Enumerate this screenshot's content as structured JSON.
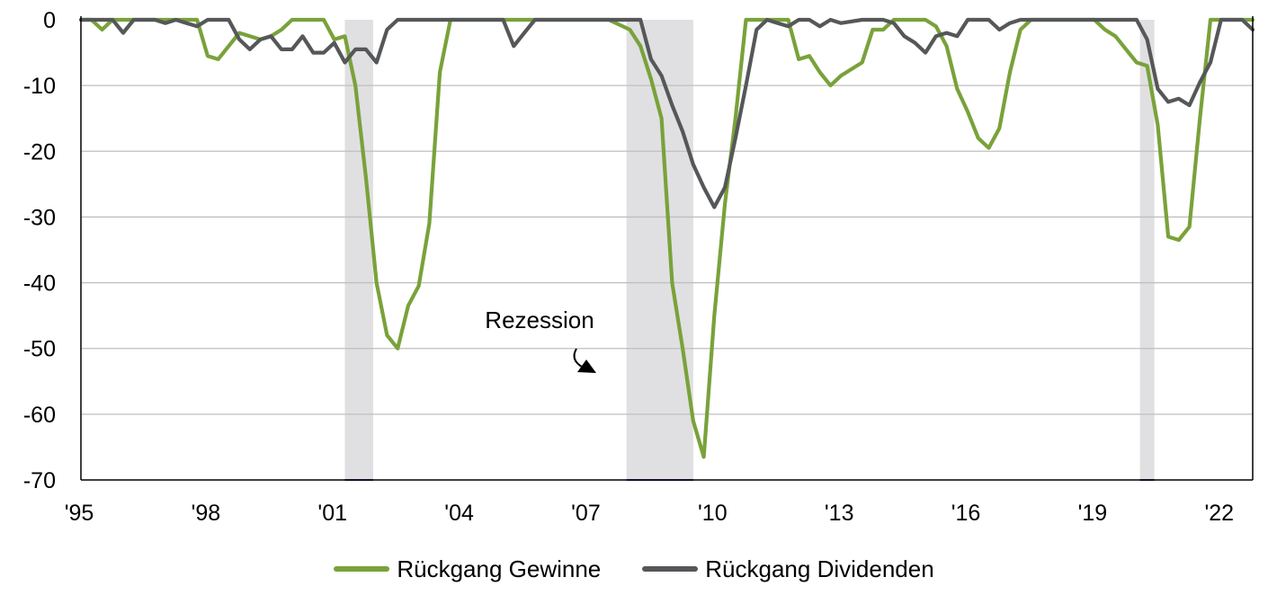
{
  "chart_data": {
    "type": "line",
    "title": "",
    "xlabel": "",
    "ylabel": "",
    "xlim": [
      1995.0,
      2022.75
    ],
    "ylim": [
      -70,
      0
    ],
    "y_ticks": [
      0,
      -10,
      -20,
      -30,
      -40,
      -50,
      -60,
      -70
    ],
    "x_ticks": [
      {
        "label": "'95",
        "value": 1995
      },
      {
        "label": "'98",
        "value": 1998
      },
      {
        "label": "'01",
        "value": 2001
      },
      {
        "label": "'04",
        "value": 2004
      },
      {
        "label": "'07",
        "value": 2007
      },
      {
        "label": "'10",
        "value": 2010
      },
      {
        "label": "'13",
        "value": 2013
      },
      {
        "label": "'16",
        "value": 2016
      },
      {
        "label": "'19",
        "value": 2019
      },
      {
        "label": "'22",
        "value": 2022
      }
    ],
    "grid": "horizontal",
    "legend_position": "bottom-center",
    "recessions": [
      [
        2001.25,
        2001.92
      ],
      [
        2007.92,
        2009.5
      ],
      [
        2020.08,
        2020.42
      ]
    ],
    "annotation": {
      "text": "Rezession",
      "x": 2008.4,
      "y": -48
    },
    "series": [
      {
        "name": "Rückgang Gewinne",
        "color": "#79A23A",
        "points": [
          [
            1995.0,
            0
          ],
          [
            1995.25,
            0
          ],
          [
            1995.5,
            -1.5
          ],
          [
            1995.75,
            0
          ],
          [
            1996.0,
            0
          ],
          [
            1996.25,
            0
          ],
          [
            1996.5,
            0
          ],
          [
            1996.75,
            0
          ],
          [
            1997.0,
            0
          ],
          [
            1997.25,
            0
          ],
          [
            1997.5,
            0
          ],
          [
            1997.75,
            0
          ],
          [
            1998.0,
            -5.5
          ],
          [
            1998.25,
            -6
          ],
          [
            1998.5,
            -4
          ],
          [
            1998.75,
            -2
          ],
          [
            1999.0,
            -2.5
          ],
          [
            1999.25,
            -3
          ],
          [
            1999.5,
            -2.5
          ],
          [
            1999.75,
            -1.5
          ],
          [
            2000.0,
            0
          ],
          [
            2000.25,
            0
          ],
          [
            2000.5,
            0
          ],
          [
            2000.75,
            0
          ],
          [
            2001.0,
            -3
          ],
          [
            2001.25,
            -2.5
          ],
          [
            2001.5,
            -10
          ],
          [
            2001.75,
            -24
          ],
          [
            2002.0,
            -40
          ],
          [
            2002.25,
            -48
          ],
          [
            2002.5,
            -50
          ],
          [
            2002.75,
            -43.5
          ],
          [
            2003.0,
            -40.5
          ],
          [
            2003.25,
            -31
          ],
          [
            2003.5,
            -8
          ],
          [
            2003.75,
            0
          ],
          [
            2004.0,
            0
          ],
          [
            2004.5,
            0
          ],
          [
            2005.0,
            0
          ],
          [
            2005.5,
            0
          ],
          [
            2006.0,
            0
          ],
          [
            2006.5,
            0
          ],
          [
            2007.0,
            0
          ],
          [
            2007.5,
            0
          ],
          [
            2008.0,
            -1.5
          ],
          [
            2008.25,
            -4
          ],
          [
            2008.5,
            -9
          ],
          [
            2008.75,
            -15
          ],
          [
            2009.0,
            -40
          ],
          [
            2009.25,
            -50
          ],
          [
            2009.5,
            -61
          ],
          [
            2009.75,
            -66.5
          ],
          [
            2010.0,
            -45
          ],
          [
            2010.25,
            -28
          ],
          [
            2010.5,
            -15
          ],
          [
            2010.75,
            0
          ],
          [
            2011.0,
            0
          ],
          [
            2011.25,
            0
          ],
          [
            2011.5,
            0
          ],
          [
            2011.75,
            0
          ],
          [
            2012.0,
            -6
          ],
          [
            2012.25,
            -5.5
          ],
          [
            2012.5,
            -8
          ],
          [
            2012.75,
            -10
          ],
          [
            2013.0,
            -8.5
          ],
          [
            2013.25,
            -7.5
          ],
          [
            2013.5,
            -6.5
          ],
          [
            2013.75,
            -1.5
          ],
          [
            2014.0,
            -1.5
          ],
          [
            2014.25,
            0
          ],
          [
            2014.5,
            0
          ],
          [
            2014.75,
            0
          ],
          [
            2015.0,
            0
          ],
          [
            2015.25,
            -1
          ],
          [
            2015.5,
            -4
          ],
          [
            2015.75,
            -10.5
          ],
          [
            2016.0,
            -14
          ],
          [
            2016.25,
            -18
          ],
          [
            2016.5,
            -19.5
          ],
          [
            2016.75,
            -16.5
          ],
          [
            2017.0,
            -8
          ],
          [
            2017.25,
            -1.5
          ],
          [
            2017.5,
            0
          ],
          [
            2017.75,
            0
          ],
          [
            2018.0,
            0
          ],
          [
            2018.5,
            0
          ],
          [
            2019.0,
            0
          ],
          [
            2019.25,
            -1.5
          ],
          [
            2019.5,
            -2.5
          ],
          [
            2019.75,
            -4.5
          ],
          [
            2020.0,
            -6.5
          ],
          [
            2020.25,
            -7
          ],
          [
            2020.5,
            -16
          ],
          [
            2020.75,
            -33
          ],
          [
            2021.0,
            -33.5
          ],
          [
            2021.25,
            -31.5
          ],
          [
            2021.5,
            -15
          ],
          [
            2021.75,
            0
          ],
          [
            2022.0,
            0
          ],
          [
            2022.25,
            0
          ],
          [
            2022.5,
            0
          ],
          [
            2022.75,
            0
          ]
        ]
      },
      {
        "name": "Rückgang Dividenden",
        "color": "#555759",
        "points": [
          [
            1995.0,
            0
          ],
          [
            1995.25,
            0
          ],
          [
            1995.5,
            0
          ],
          [
            1995.75,
            0
          ],
          [
            1996.0,
            -2
          ],
          [
            1996.25,
            0
          ],
          [
            1996.5,
            0
          ],
          [
            1996.75,
            0
          ],
          [
            1997.0,
            -0.5
          ],
          [
            1997.25,
            0
          ],
          [
            1997.5,
            -0.5
          ],
          [
            1997.75,
            -1
          ],
          [
            1998.0,
            0
          ],
          [
            1998.25,
            0
          ],
          [
            1998.5,
            0
          ],
          [
            1998.75,
            -3
          ],
          [
            1999.0,
            -4.5
          ],
          [
            1999.25,
            -3
          ],
          [
            1999.5,
            -2.5
          ],
          [
            1999.75,
            -4.5
          ],
          [
            2000.0,
            -4.5
          ],
          [
            2000.25,
            -2.5
          ],
          [
            2000.5,
            -5
          ],
          [
            2000.75,
            -5
          ],
          [
            2001.0,
            -3.5
          ],
          [
            2001.25,
            -6.5
          ],
          [
            2001.5,
            -4.5
          ],
          [
            2001.75,
            -4.5
          ],
          [
            2002.0,
            -6.5
          ],
          [
            2002.25,
            -1.5
          ],
          [
            2002.5,
            0
          ],
          [
            2002.75,
            0
          ],
          [
            2003.0,
            0
          ],
          [
            2003.5,
            0
          ],
          [
            2004.0,
            0
          ],
          [
            2004.5,
            0
          ],
          [
            2005.0,
            0
          ],
          [
            2005.25,
            -4
          ],
          [
            2005.5,
            -2
          ],
          [
            2005.75,
            0
          ],
          [
            2006.0,
            0
          ],
          [
            2006.5,
            0
          ],
          [
            2007.0,
            0
          ],
          [
            2007.5,
            0
          ],
          [
            2007.75,
            0
          ],
          [
            2008.0,
            0
          ],
          [
            2008.25,
            0
          ],
          [
            2008.5,
            -6
          ],
          [
            2008.75,
            -8.5
          ],
          [
            2009.0,
            -13
          ],
          [
            2009.25,
            -17
          ],
          [
            2009.5,
            -22
          ],
          [
            2009.75,
            -25.5
          ],
          [
            2010.0,
            -28.5
          ],
          [
            2010.25,
            -25.5
          ],
          [
            2010.5,
            -18
          ],
          [
            2010.75,
            -10
          ],
          [
            2011.0,
            -1.5
          ],
          [
            2011.25,
            0
          ],
          [
            2011.5,
            -0.5
          ],
          [
            2011.75,
            -1
          ],
          [
            2012.0,
            0
          ],
          [
            2012.25,
            0
          ],
          [
            2012.5,
            -1
          ],
          [
            2012.75,
            0
          ],
          [
            2013.0,
            -0.5
          ],
          [
            2013.5,
            0
          ],
          [
            2014.0,
            0
          ],
          [
            2014.25,
            -0.5
          ],
          [
            2014.5,
            -2.5
          ],
          [
            2014.75,
            -3.5
          ],
          [
            2015.0,
            -5
          ],
          [
            2015.25,
            -2.5
          ],
          [
            2015.5,
            -2
          ],
          [
            2015.75,
            -2.5
          ],
          [
            2016.0,
            0
          ],
          [
            2016.25,
            0
          ],
          [
            2016.5,
            0
          ],
          [
            2016.75,
            -1.5
          ],
          [
            2017.0,
            -0.5
          ],
          [
            2017.25,
            0
          ],
          [
            2017.5,
            0
          ],
          [
            2018.0,
            0
          ],
          [
            2018.5,
            0
          ],
          [
            2019.0,
            0
          ],
          [
            2019.5,
            0
          ],
          [
            2020.0,
            0
          ],
          [
            2020.25,
            -3
          ],
          [
            2020.5,
            -10.5
          ],
          [
            2020.75,
            -12.5
          ],
          [
            2021.0,
            -12
          ],
          [
            2021.25,
            -13
          ],
          [
            2021.5,
            -9.5
          ],
          [
            2021.75,
            -6.5
          ],
          [
            2022.0,
            0
          ],
          [
            2022.25,
            0
          ],
          [
            2022.5,
            0
          ],
          [
            2022.75,
            -1.5
          ]
        ]
      }
    ]
  },
  "legend": [
    {
      "label": "Rückgang Gewinne",
      "color": "#79A23A"
    },
    {
      "label": "Rückgang Dividenden",
      "color": "#555759"
    }
  ],
  "colors": {
    "recession_fill": "#E0E0E2",
    "recession_baseline": "#7030A0",
    "grid": "#BFBFBF",
    "axis": "#000000"
  }
}
